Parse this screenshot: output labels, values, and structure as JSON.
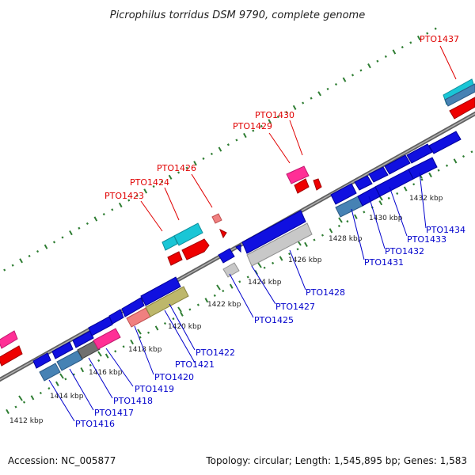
{
  "title": "Picrophilus torridus DSM 9790, complete genome",
  "footer": {
    "accession": "Accession: NC_005877",
    "summary": "Topology: circular; Length: 1,545,895 bp; Genes: 1,583"
  },
  "colors": {
    "backbone": "#808080",
    "dots": "#2e7d32",
    "label_red": "#e00000",
    "label_blue": "#0000cc",
    "gene_blue": "#1010e0",
    "gene_red": "#ee0000",
    "gene_steel": "#4682b4",
    "gene_cyan": "#19c6d6",
    "gene_pink": "#ff2f96",
    "gene_salmon": "#f08080",
    "gene_olive": "#bdb76b",
    "gene_gray": "#707070",
    "gene_lightgray": "#c8c8c8"
  },
  "ticks": [
    {
      "label": "1412 kbp"
    },
    {
      "label": "1414 kbp"
    },
    {
      "label": "1416 kbp"
    },
    {
      "label": "1418 kbp"
    },
    {
      "label": "1420 kbp"
    },
    {
      "label": "1422 kbp"
    },
    {
      "label": "1424 kbp"
    },
    {
      "label": "1426 kbp"
    },
    {
      "label": "1428 kbp"
    },
    {
      "label": "1430 kbp"
    },
    {
      "label": "1432 kbp"
    }
  ],
  "labels_top": [
    "PTO1423",
    "PTO1424",
    "PTO1426",
    "PTO1429",
    "PTO1430",
    "PTO1437"
  ],
  "labels_bottom": [
    "PTO1416",
    "PTO1417",
    "PTO1418",
    "PTO1419",
    "PTO1420",
    "PTO1421",
    "PTO1422",
    "PTO1425",
    "PTO1427",
    "PTO1428",
    "PTO1431",
    "PTO1432",
    "PTO1433",
    "PTO1434"
  ]
}
